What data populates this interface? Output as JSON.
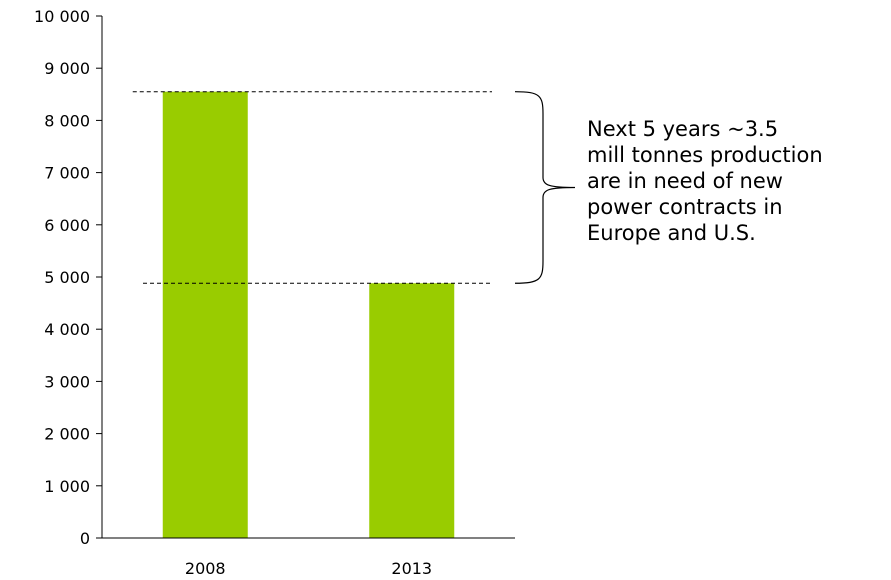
{
  "chart_data": {
    "type": "bar",
    "categories": [
      "2008",
      "2013"
    ],
    "values": [
      8550,
      4880
    ],
    "ylim": [
      0,
      10000
    ],
    "yticks": [
      0,
      1000,
      2000,
      3000,
      4000,
      5000,
      6000,
      7000,
      8000,
      9000,
      10000
    ],
    "ytick_labels": [
      "0",
      "1 000",
      "2 000",
      "3 000",
      "4 000",
      "5 000",
      "6 000",
      "7 000",
      "8 000",
      "9 000",
      "10 000"
    ],
    "grid": false,
    "colors": {
      "bar": "#99cc00",
      "axis": "#000000",
      "reference_line": "#000000"
    },
    "annotation": {
      "lines": [
        "Next 5 years ~3.5",
        "mill tonnes production",
        "are in need of new",
        "power contracts in",
        "Europe and U.S."
      ]
    }
  }
}
